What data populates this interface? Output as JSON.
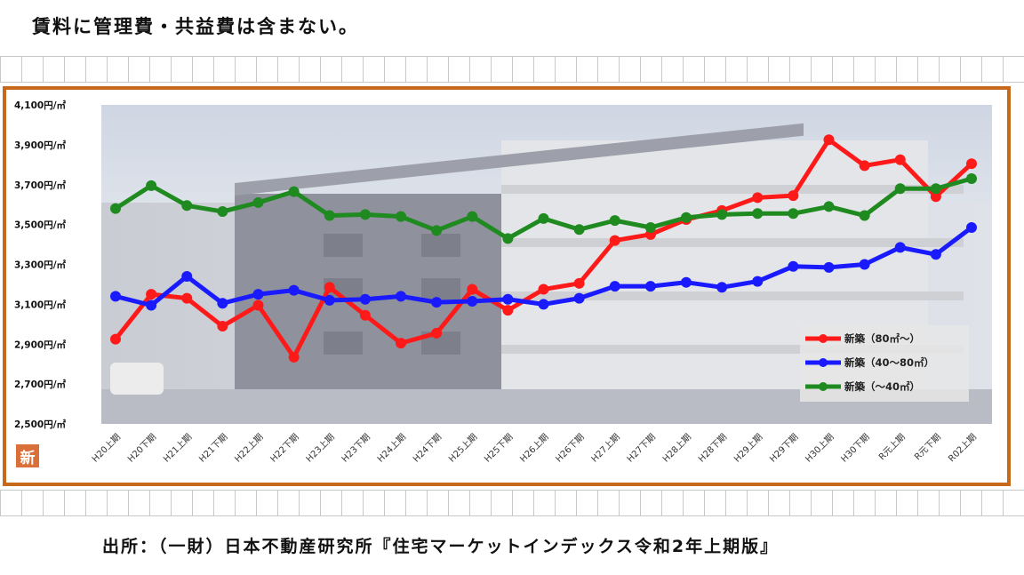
{
  "header": {
    "note": "賃料に管理費・共益費は含まない。"
  },
  "footer": {
    "source": "出所：（一財）日本不動産研究所『住宅マーケットインデックス令和2年上期版』"
  },
  "badge": {
    "label": "新"
  },
  "chart_data": {
    "type": "line",
    "title": "",
    "xlabel": "",
    "ylabel": "",
    "ylim": [
      2500,
      4100
    ],
    "yticks": [
      "4,100円/㎡",
      "3,900円/㎡",
      "3,700円/㎡",
      "3,500円/㎡",
      "3,300円/㎡",
      "3,100円/㎡",
      "2,900円/㎡",
      "2,700円/㎡",
      "2,500円/㎡"
    ],
    "ytick_values": [
      4100,
      3900,
      3700,
      3500,
      3300,
      3100,
      2900,
      2700,
      2500
    ],
    "categories": [
      "H20上期",
      "H20下期",
      "H21上期",
      "H21下期",
      "H22上期",
      "H22下期",
      "H23上期",
      "H23下期",
      "H24上期",
      "H24下期",
      "H25上期",
      "H25下期",
      "H26上期",
      "H26下期",
      "H27上期",
      "H27下期",
      "H28上期",
      "H28下期",
      "H29上期",
      "H29下期",
      "H30上期",
      "H30下期",
      "R元上期",
      "R元下期",
      "R02上期"
    ],
    "series": [
      {
        "name": "新築（80㎡〜）",
        "color": "#ff1a1a",
        "values": [
          2925,
          3150,
          3130,
          2990,
          3095,
          2835,
          3185,
          3045,
          2905,
          2955,
          3175,
          3070,
          3175,
          3205,
          3420,
          3450,
          3525,
          3570,
          3635,
          3645,
          3925,
          3795,
          3825,
          3640,
          3805
        ]
      },
      {
        "name": "新築（40〜80㎡）",
        "color": "#1a1aff",
        "values": [
          3140,
          3095,
          3240,
          3105,
          3150,
          3170,
          3120,
          3125,
          3140,
          3110,
          3115,
          3125,
          3100,
          3130,
          3190,
          3190,
          3210,
          3185,
          3215,
          3290,
          3285,
          3300,
          3385,
          3350,
          3485
        ]
      },
      {
        "name": "新築（〜40㎡）",
        "color": "#1f8a1f",
        "values": [
          3580,
          3695,
          3595,
          3565,
          3610,
          3665,
          3545,
          3550,
          3540,
          3470,
          3540,
          3430,
          3530,
          3475,
          3520,
          3485,
          3535,
          3550,
          3555,
          3555,
          3590,
          3545,
          3680,
          3680,
          3730
        ]
      }
    ],
    "legend_position": "bottom-right",
    "grid": false
  }
}
